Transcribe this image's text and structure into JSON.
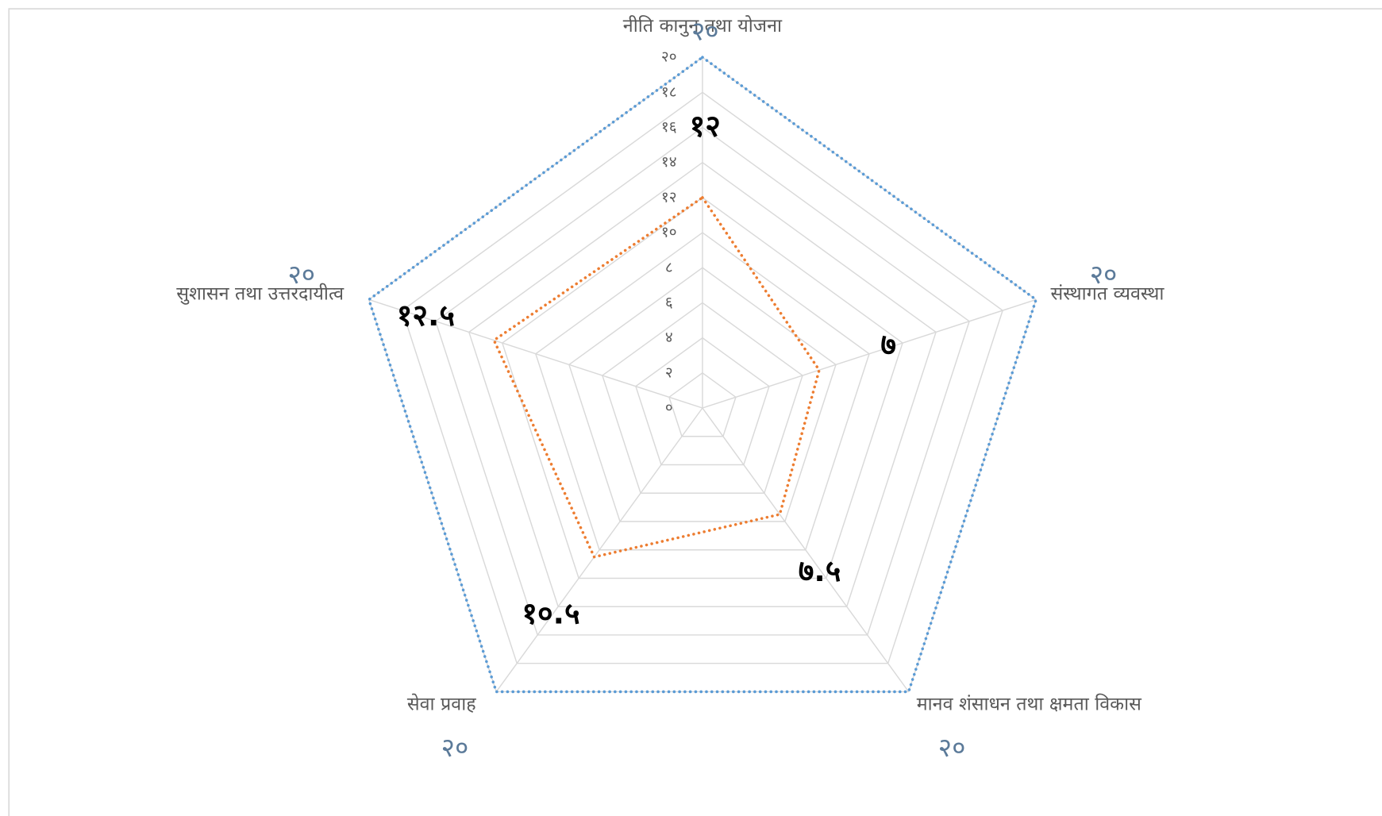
{
  "chart_data": {
    "type": "radar",
    "categories": [
      "नीति कानुन तथा योजना",
      "संस्थागत व्यवस्था",
      "मानव शंसाधन तथा क्षमता विकास",
      "सेवा प्रवाह",
      "सुशासन तथा उत्तरदायीत्व"
    ],
    "series": [
      {
        "color": "#5b9bd5",
        "values": [
          20,
          20,
          20,
          20,
          20
        ],
        "value_labels": [
          "२०",
          "२०",
          "२०",
          "२०",
          "२०"
        ]
      },
      {
        "color": "#ed7d31",
        "values": [
          12,
          7,
          7.5,
          10.5,
          12.5
        ],
        "value_labels": [
          "१२",
          "७",
          "७.५",
          "१०.५",
          "१२.५"
        ]
      }
    ],
    "ylim": [
      0,
      20
    ],
    "yticks": [
      {
        "value": 0,
        "label": "०"
      },
      {
        "value": 2,
        "label": "२"
      },
      {
        "value": 4,
        "label": "४"
      },
      {
        "value": 6,
        "label": "६"
      },
      {
        "value": 8,
        "label": "८"
      },
      {
        "value": 10,
        "label": "१०"
      },
      {
        "value": 12,
        "label": "१२"
      },
      {
        "value": 14,
        "label": "१४"
      },
      {
        "value": 16,
        "label": "१६"
      },
      {
        "value": 18,
        "label": "१८"
      },
      {
        "value": 20,
        "label": "२०"
      }
    ],
    "grid": true
  }
}
